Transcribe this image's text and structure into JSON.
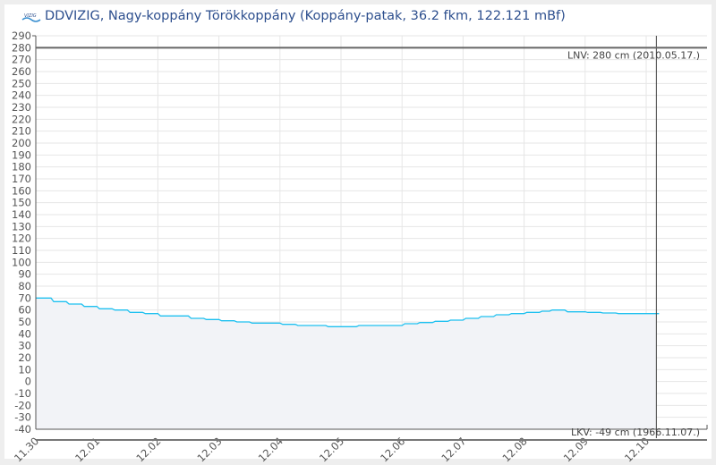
{
  "header": {
    "title": "DDVIZIG, Nagy-koppány Törökkoppány (Koppány-patak, 36.2 fkm, 122.121 mBf)",
    "logo_text": "VIZIG"
  },
  "chart_data": {
    "type": "area",
    "title": "DDVIZIG, Nagy-koppány Törökkoppány (Koppány-patak, 36.2 fkm, 122.121 mBf)",
    "xlabel": "",
    "ylabel": "",
    "ylim": [
      -40,
      290
    ],
    "yticks": [
      -40,
      -30,
      -20,
      -10,
      0,
      10,
      20,
      30,
      40,
      50,
      60,
      70,
      80,
      90,
      100,
      110,
      120,
      130,
      140,
      150,
      160,
      170,
      180,
      190,
      200,
      210,
      220,
      230,
      240,
      250,
      260,
      270,
      280,
      290
    ],
    "xticks": [
      "11.30",
      "12.01",
      "12.02",
      "12.03",
      "12.04",
      "12.05",
      "12.06",
      "12.07",
      "12.08",
      "12.09",
      "12.10"
    ],
    "grid": true,
    "colors": {
      "line": "#1ec0f0",
      "fill": "#f2f3f7",
      "grid": "#e6e6e6",
      "axis": "#555555",
      "ref": "#666666"
    },
    "series": [
      {
        "points": [
          [
            "11.30 00:00",
            70
          ],
          [
            "11.30 06:00",
            67
          ],
          [
            "11.30 12:00",
            65
          ],
          [
            "11.30 18:00",
            63
          ],
          [
            "12.01 00:00",
            61
          ],
          [
            "12.01 06:00",
            60
          ],
          [
            "12.01 12:00",
            58
          ],
          [
            "12.01 18:00",
            57
          ],
          [
            "12.02 00:00",
            55
          ],
          [
            "12.02 06:00",
            55
          ],
          [
            "12.02 12:00",
            53
          ],
          [
            "12.02 18:00",
            52
          ],
          [
            "12.03 00:00",
            51
          ],
          [
            "12.03 06:00",
            50
          ],
          [
            "12.03 12:00",
            49
          ],
          [
            "12.03 18:00",
            49
          ],
          [
            "12.04 00:00",
            48
          ],
          [
            "12.04 06:00",
            47
          ],
          [
            "12.04 12:00",
            47
          ],
          [
            "12.04 18:00",
            46
          ],
          [
            "12.05 00:00",
            46
          ],
          [
            "12.05 06:00",
            47
          ],
          [
            "12.05 12:00",
            47
          ],
          [
            "12.05 18:00",
            47
          ],
          [
            "12.06 00:00",
            48.5
          ],
          [
            "12.06 06:00",
            49.5
          ],
          [
            "12.06 12:00",
            50.5
          ],
          [
            "12.06 18:00",
            51.5
          ],
          [
            "12.07 00:00",
            53
          ],
          [
            "12.07 06:00",
            54.5
          ],
          [
            "12.07 12:00",
            56
          ],
          [
            "12.07 18:00",
            57
          ],
          [
            "12.08 00:00",
            58
          ],
          [
            "12.08 06:00",
            59
          ],
          [
            "12.08 10:00",
            60
          ],
          [
            "12.08 16:00",
            58.5
          ],
          [
            "12.09 00:00",
            58
          ],
          [
            "12.09 06:00",
            57.5
          ],
          [
            "12.09 12:00",
            57
          ],
          [
            "12.09 18:00",
            57
          ],
          [
            "12.10 00:00",
            57
          ],
          [
            "12.10 04:00",
            57
          ]
        ]
      }
    ],
    "current_time": "12.10 04:00",
    "reference_lines": [
      {
        "value": 280,
        "label": "LNV: 280 cm (2010.05.17.)"
      },
      {
        "value": -49,
        "label": "LKV: -49 cm (1966.11.07.)"
      }
    ]
  }
}
